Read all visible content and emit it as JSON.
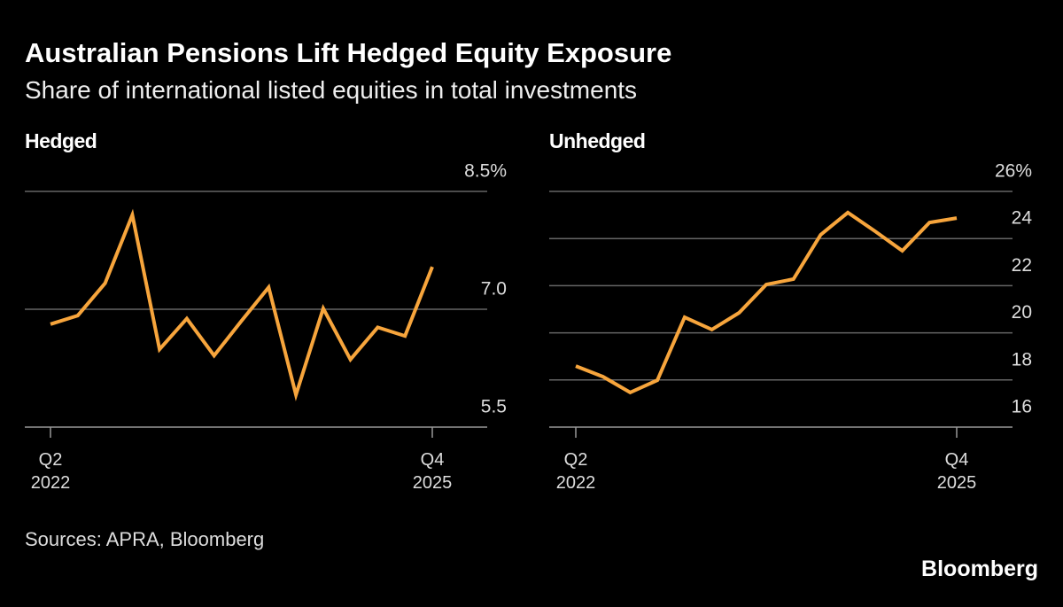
{
  "header": {
    "title": "Australian Pensions Lift Hedged Equity Exposure",
    "subtitle": "Share of international listed equities in total investments"
  },
  "chart_data": [
    {
      "type": "line",
      "title": "Hedged",
      "color": "#f7a53c",
      "grid": true,
      "categories": [
        "Q2\n2022",
        null,
        null,
        null,
        null,
        null,
        null,
        null,
        null,
        null,
        null,
        null,
        null,
        null,
        "Q4\n2025"
      ],
      "values": [
        6.81,
        6.92,
        7.33,
        8.2,
        6.49,
        6.88,
        6.41,
        6.85,
        7.28,
        5.91,
        7.01,
        6.36,
        6.77,
        6.66,
        7.54
      ],
      "ylim": [
        5.5,
        8.5
      ],
      "yticks": [
        5.5,
        {
          "value": 7,
          "label": "7.0"
        },
        {
          "value": 8.5,
          "label": "8.5%"
        }
      ]
    },
    {
      "type": "line",
      "title": "Unhedged",
      "color": "#f7a53c",
      "grid": true,
      "categories": [
        "Q2\n2022",
        null,
        null,
        null,
        null,
        null,
        null,
        null,
        null,
        null,
        null,
        null,
        null,
        null,
        "Q4\n2025"
      ],
      "values": [
        18.59,
        18.14,
        17.47,
        17.99,
        20.66,
        20.14,
        20.85,
        22.05,
        22.28,
        24.16,
        25.1,
        24.31,
        23.48,
        24.68,
        24.87
      ],
      "ylim": [
        16,
        26
      ],
      "yticks": [
        16,
        18,
        20,
        22,
        24,
        {
          "value": 26,
          "label": "26%"
        }
      ]
    }
  ],
  "footer": {
    "source": "Sources: APRA, Bloomberg",
    "brand": "Bloomberg"
  }
}
